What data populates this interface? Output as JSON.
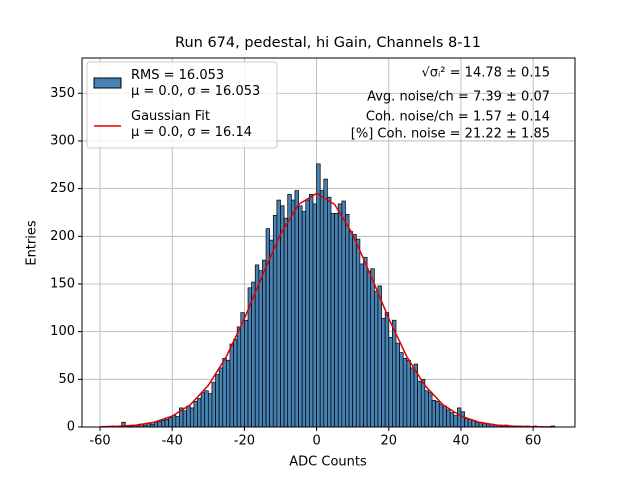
{
  "chart_data": {
    "type": "histogram",
    "title": "Run 674, pedestal, hi Gain, Channels 8-11",
    "xlabel": "ADC Counts",
    "ylabel": "Entries",
    "bins": [
      -60,
      -59,
      -58,
      -57,
      -56,
      -55,
      -54,
      -53,
      -52,
      -51,
      -50,
      -49,
      -48,
      -47,
      -46,
      -45,
      -44,
      -43,
      -42,
      -41,
      -40,
      -39,
      -38,
      -37,
      -36,
      -35,
      -34,
      -33,
      -32,
      -31,
      -30,
      -29,
      -28,
      -27,
      -26,
      -25,
      -24,
      -23,
      -22,
      -21,
      -20,
      -19,
      -18,
      -17,
      -16,
      -15,
      -14,
      -13,
      -12,
      -11,
      -10,
      -9,
      -8,
      -7,
      -6,
      -5,
      -4,
      -3,
      -2,
      -1,
      0,
      1,
      2,
      3,
      4,
      5,
      6,
      7,
      8,
      9,
      10,
      11,
      12,
      13,
      14,
      15,
      16,
      17,
      18,
      19,
      20,
      21,
      22,
      23,
      24,
      25,
      26,
      27,
      28,
      29,
      30,
      31,
      32,
      33,
      34,
      35,
      36,
      37,
      38,
      39,
      40,
      41,
      42,
      43,
      44,
      45,
      46,
      47,
      48,
      49,
      50,
      51,
      52,
      53,
      54,
      55,
      56,
      57,
      58,
      59,
      60,
      61,
      62,
      63,
      64,
      65,
      66
    ],
    "counts": [
      0,
      0,
      0,
      1,
      0,
      1,
      5,
      1,
      1,
      2,
      2,
      3,
      2,
      4,
      3,
      5,
      6,
      7,
      8,
      10,
      12,
      11,
      20,
      17,
      22,
      20,
      27,
      30,
      36,
      38,
      35,
      47,
      55,
      62,
      72,
      70,
      87,
      92,
      105,
      120,
      112,
      146,
      152,
      170,
      164,
      175,
      208,
      196,
      222,
      238,
      232,
      219,
      244,
      238,
      248,
      232,
      226,
      238,
      244,
      234,
      276,
      248,
      260,
      241,
      224,
      224,
      234,
      237,
      223,
      205,
      202,
      197,
      171,
      178,
      163,
      166,
      142,
      148,
      114,
      120,
      94,
      112,
      88,
      78,
      72,
      70,
      62,
      66,
      48,
      50,
      38,
      36,
      28,
      27,
      24,
      22,
      18,
      15,
      12,
      20,
      16,
      9,
      8,
      7,
      5,
      5,
      4,
      3,
      3,
      2,
      2,
      1,
      2,
      1,
      1,
      1,
      1,
      0,
      1,
      0,
      1,
      0,
      0,
      0,
      0,
      1
    ],
    "name": "RMS = 16.053\nμ = 0.0, σ = 16.053",
    "color": "#4682b4",
    "edgecolor": "#000000",
    "fit": {
      "name": "Gaussian Fit\nμ = 0.0, σ = 16.14",
      "color": "#e00000",
      "x": [
        -60,
        -55,
        -50,
        -45,
        -40,
        -35,
        -30,
        -25,
        -20,
        -15,
        -10,
        -5,
        0,
        5,
        10,
        15,
        20,
        25,
        30,
        35,
        40,
        45,
        50,
        55,
        60,
        65
      ],
      "values": [
        0.24,
        0.73,
        2.0,
        5.0,
        11.4,
        23.3,
        43.6,
        73.8,
        113.7,
        159.1,
        202.2,
        233.5,
        245,
        233.5,
        202.2,
        159.1,
        113.7,
        73.8,
        43.6,
        23.3,
        11.4,
        5.0,
        2.0,
        0.73,
        0.24,
        0.07
      ]
    },
    "annotations": [
      "√σᵢ² = 14.78 ± 0.15",
      "Avg. noise/ch = 7.39 ± 0.07",
      "Coh. noise/ch = 1.57 ± 0.14",
      "[%] Coh. noise = 21.22 ± 1.85"
    ],
    "xlim": [
      -65,
      71.6
    ],
    "ylim": [
      0,
      387
    ],
    "xticks": [
      -60,
      -40,
      -20,
      0,
      20,
      40,
      60
    ],
    "yticks": [
      0,
      50,
      100,
      150,
      200,
      250,
      300,
      350
    ],
    "grid": true,
    "legend": "upper left"
  }
}
